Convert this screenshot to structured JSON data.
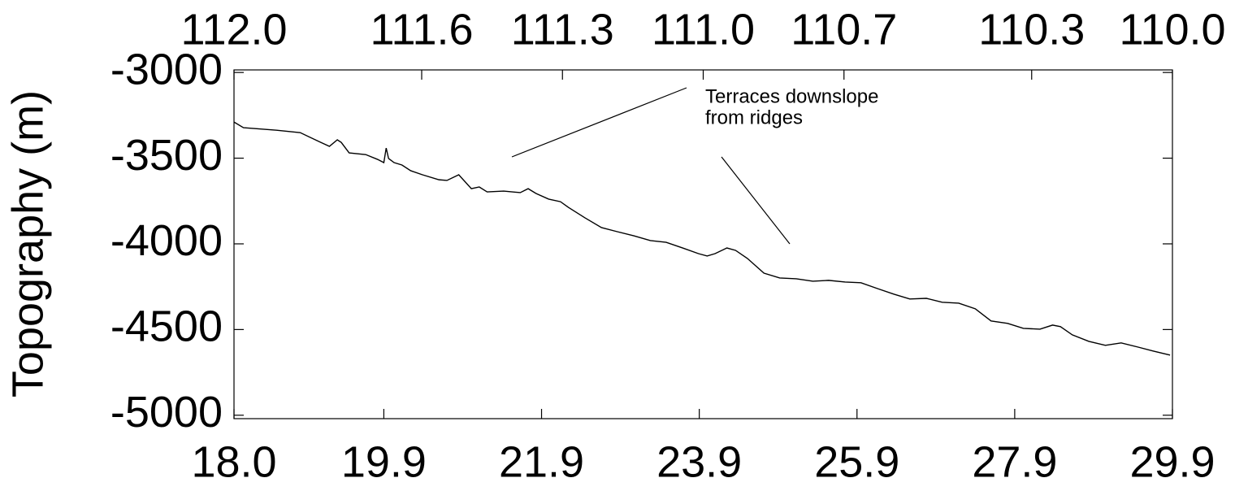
{
  "chart_data": {
    "type": "line",
    "y_label": "Topography (m)",
    "annotation": [
      "Terraces downslope",
      "from ridges"
    ],
    "x": [
      18.0,
      18.12,
      18.54,
      18.84,
      19.1,
      19.21,
      19.31,
      19.36,
      19.46,
      19.67,
      19.82,
      19.9,
      19.93,
      19.96,
      20.03,
      20.13,
      20.24,
      20.39,
      20.6,
      20.7,
      20.85,
      21.01,
      21.11,
      21.21,
      21.42,
      21.63,
      21.73,
      21.83,
      21.99,
      22.14,
      22.24,
      22.45,
      22.66,
      22.86,
      23.07,
      23.28,
      23.48,
      23.69,
      23.89,
      24.0,
      24.1,
      24.25,
      24.36,
      24.51,
      24.72,
      24.92,
      25.13,
      25.34,
      25.54,
      25.75,
      25.95,
      26.16,
      26.37,
      26.57,
      26.78,
      26.98,
      27.19,
      27.4,
      27.6,
      27.81,
      28.01,
      28.22,
      28.38,
      28.48,
      28.63,
      28.84,
      29.05,
      29.25,
      29.46,
      29.66,
      29.87
    ],
    "values": [
      -3289,
      -3322,
      -3337,
      -3351,
      -3408,
      -3431,
      -3393,
      -3408,
      -3469,
      -3479,
      -3507,
      -3526,
      -3441,
      -3502,
      -3526,
      -3540,
      -3573,
      -3597,
      -3626,
      -3630,
      -3597,
      -3678,
      -3668,
      -3697,
      -3692,
      -3701,
      -3678,
      -3706,
      -3739,
      -3754,
      -3787,
      -3848,
      -3905,
      -3929,
      -3953,
      -3981,
      -3991,
      -4024,
      -4057,
      -4071,
      -4057,
      -4024,
      -4038,
      -4085,
      -4171,
      -4199,
      -4204,
      -4218,
      -4213,
      -4223,
      -4227,
      -4261,
      -4294,
      -4322,
      -4318,
      -4341,
      -4346,
      -4379,
      -4450,
      -4464,
      -4493,
      -4498,
      -4474,
      -4483,
      -4531,
      -4569,
      -4592,
      -4578,
      -4602,
      -4626,
      -4649
    ],
    "color": "#000000",
    "xlim": [
      18.0,
      29.9
    ],
    "xticks": [
      {
        "value": 18,
        "label": "18.0"
      },
      19.9,
      21.9,
      23.9,
      25.9,
      27.9,
      29.9
    ],
    "x2lim": [
      112.0,
      110.0
    ],
    "x2ticks": [
      {
        "value": 112,
        "label": "112.0"
      },
      111.6,
      111.3,
      {
        "value": 111,
        "label": "111.0"
      },
      110.7,
      110.3,
      {
        "value": 110,
        "label": "110.0"
      }
    ],
    "ylim": [
      -5020,
      -2985
    ],
    "yticks": [
      -3000,
      -3500,
      -4000,
      -4500,
      -5000
    ],
    "grid": false
  }
}
